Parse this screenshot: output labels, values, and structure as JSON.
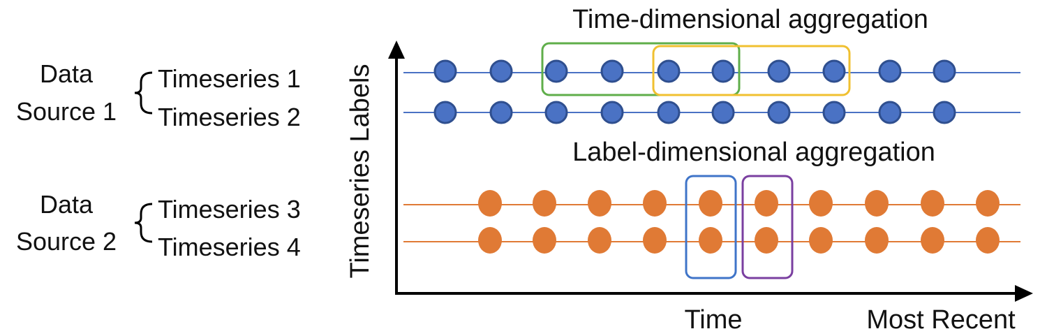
{
  "titles": {
    "time_aggregation": "Time-dimensional aggregation",
    "label_aggregation": "Label-dimensional aggregation"
  },
  "axes": {
    "y_label": "Timeseries Labels",
    "x_label": "Time",
    "x_end_label": "Most Recent"
  },
  "sources": [
    {
      "line1": "Data",
      "line2": "Source 1",
      "series": [
        "Timeseries 1",
        "Timeseries 2"
      ]
    },
    {
      "line1": "Data",
      "line2": "Source 2",
      "series": [
        "Timeseries 3",
        "Timeseries 4"
      ]
    }
  ],
  "colors": {
    "blue_series": "#4a72c4",
    "blue_edge": "#2f4f8f",
    "orange_series": "#e07a35",
    "time_window_1": "#5fae4a",
    "time_window_2": "#f0c030",
    "label_window_1": "#3f74c8",
    "label_window_2": "#7a3fa0"
  }
}
